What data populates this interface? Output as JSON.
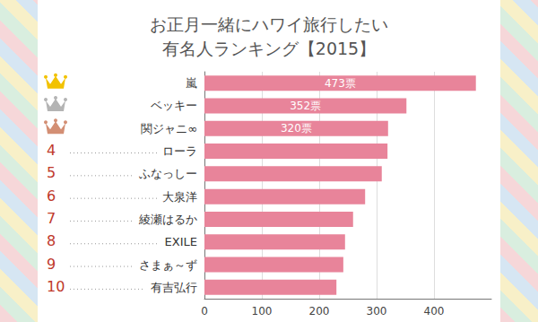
{
  "chart_data": {
    "type": "bar",
    "title": "お正月一緒にハワイ旅行したい\n有名人ランキング【2015】",
    "orientation": "horizontal",
    "categories": [
      "嵐",
      "ベッキー",
      "関ジャニ∞",
      "ローラ",
      "ふなっしー",
      "大泉洋",
      "綾瀬はるか",
      "EXILE",
      "さまぁ～ず",
      "有吉弘行"
    ],
    "values": [
      473,
      352,
      320,
      319,
      309,
      280,
      259,
      245,
      242,
      230
    ],
    "value_labels": [
      "473票",
      "352票",
      "320票",
      null,
      null,
      null,
      null,
      null,
      null,
      null
    ],
    "rank_labels": [
      null,
      null,
      null,
      "4",
      "5",
      "6",
      "7",
      "8",
      "9",
      "10"
    ],
    "data_labels": true,
    "color": "#e8849a",
    "xlim": [
      0,
      500
    ],
    "xticks": [
      0,
      100,
      200,
      300,
      400
    ],
    "grid": true
  }
}
